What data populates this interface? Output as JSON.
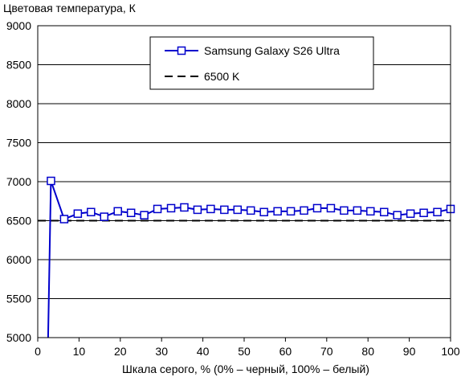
{
  "chart_data": {
    "type": "line",
    "title": "",
    "ylabel": "Цветовая температура, К",
    "xlabel": "Шкала серого, % (0% – черный, 100% – белый)",
    "xlim": [
      0,
      100
    ],
    "ylim": [
      5000,
      9000
    ],
    "x_ticks": [
      "0",
      "10",
      "20",
      "30",
      "40",
      "50",
      "60",
      "70",
      "80",
      "90",
      "100"
    ],
    "y_ticks": [
      "5000",
      "5500",
      "6000",
      "6500",
      "7000",
      "7500",
      "8000",
      "8500",
      "9000"
    ],
    "x_tick_values": [
      0,
      10,
      20,
      30,
      40,
      50,
      60,
      70,
      80,
      90,
      100
    ],
    "y_tick_values": [
      5000,
      5500,
      6000,
      6500,
      7000,
      7500,
      8000,
      8500,
      9000
    ],
    "grid": "horizontal",
    "legend_position": "top-right",
    "series": [
      {
        "name": "Samsung Galaxy S26 Ultra",
        "color": "#0000cc",
        "marker": "square",
        "x": [
          2.5,
          3.2,
          6.4,
          9.7,
          12.9,
          16.1,
          19.4,
          22.6,
          25.8,
          29.0,
          32.3,
          35.5,
          38.7,
          41.9,
          45.2,
          48.4,
          51.6,
          54.8,
          58.1,
          61.3,
          64.5,
          67.7,
          71.0,
          74.2,
          77.4,
          80.6,
          83.9,
          87.1,
          90.3,
          93.5,
          96.8,
          100.0
        ],
        "y": [
          5000,
          7010,
          6520,
          6590,
          6610,
          6550,
          6620,
          6600,
          6570,
          6650,
          6660,
          6670,
          6640,
          6650,
          6640,
          6640,
          6630,
          6610,
          6620,
          6620,
          6630,
          6660,
          6660,
          6630,
          6630,
          6620,
          6610,
          6570,
          6590,
          6600,
          6610,
          6650
        ],
        "markers_from_index": 1
      },
      {
        "name": "6500 K",
        "color": "#000000",
        "style": "dashed",
        "x": [
          0,
          100
        ],
        "y": [
          6500,
          6500
        ]
      }
    ]
  }
}
